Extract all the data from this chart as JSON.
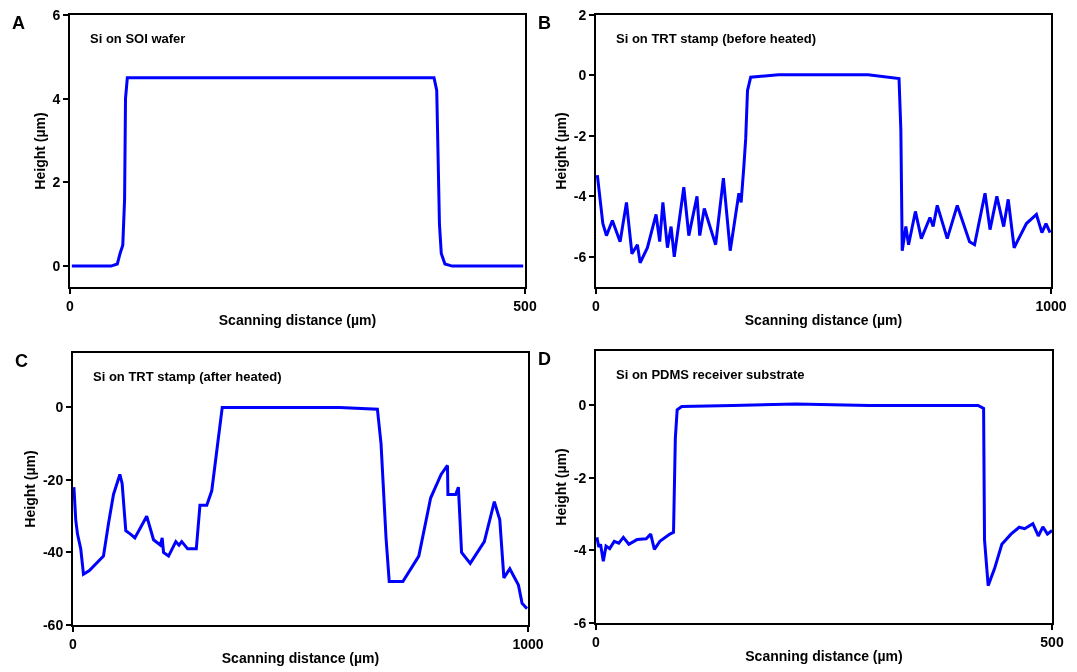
{
  "chart_data": [
    {
      "type": "line",
      "title": "A",
      "annotations": [
        "Si on SOI wafer"
      ],
      "xlabel": "Scanning distance (µm)",
      "ylabel": "Height (µm)",
      "xlim": [
        0,
        500
      ],
      "xticks": [
        0,
        500
      ],
      "ylim": [
        -0.5,
        6
      ],
      "yticks": [
        0,
        2,
        4,
        6
      ],
      "series": [
        {
          "color": "#0000ff",
          "x": [
            2,
            45,
            52,
            55,
            58,
            60,
            61,
            63,
            400,
            403,
            406,
            408,
            412,
            420,
            498
          ],
          "values": [
            0,
            0,
            0.05,
            0.3,
            0.5,
            1.6,
            4.0,
            4.5,
            4.5,
            4.2,
            1.0,
            0.3,
            0.05,
            0,
            0
          ]
        }
      ]
    },
    {
      "type": "line",
      "title": "B",
      "annotations": [
        "Si on TRT stamp (before heated)"
      ],
      "xlabel": "Scanning distance (µm)",
      "ylabel": "Height (µm)",
      "xlim": [
        0,
        1000
      ],
      "xticks": [
        0,
        1000
      ],
      "ylim": [
        -7,
        2
      ],
      "yticks": [
        -6,
        -4,
        -2,
        0,
        2
      ],
      "series": [
        {
          "color": "#0000ff",
          "x": [
            3,
            15,
            23,
            36,
            53,
            67,
            79,
            91,
            97,
            113,
            132,
            140,
            147,
            157,
            165,
            172,
            193,
            204,
            222,
            228,
            238,
            263,
            280,
            295,
            314,
            319,
            325,
            329,
            333,
            340,
            401,
            598,
            666,
            670,
            673,
            681,
            687,
            702,
            715,
            734,
            741,
            750,
            772,
            794,
            821,
            832,
            855,
            866,
            881,
            896,
            906,
            919,
            946,
            968,
            980,
            989,
            998
          ],
          "values": [
            -3.3,
            -4.9,
            -5.3,
            -4.8,
            -5.5,
            -4.2,
            -5.9,
            -5.6,
            -6.2,
            -5.7,
            -4.6,
            -5.5,
            -4.2,
            -5.7,
            -5.0,
            -6.0,
            -3.7,
            -5.3,
            -4.0,
            -5.3,
            -4.4,
            -5.6,
            -3.4,
            -5.8,
            -3.9,
            -4.2,
            -3.0,
            -2.1,
            -0.5,
            -0.06,
            0.02,
            0.02,
            -0.1,
            -1.8,
            -5.8,
            -5.0,
            -5.6,
            -4.5,
            -5.4,
            -4.7,
            -5.0,
            -4.3,
            -5.4,
            -4.3,
            -5.5,
            -5.6,
            -3.9,
            -5.1,
            -4.0,
            -5.0,
            -4.1,
            -5.7,
            -4.9,
            -4.6,
            -5.2,
            -4.9,
            -5.2
          ]
        }
      ]
    },
    {
      "type": "line",
      "title": "C",
      "annotations": [
        "Si on TRT stamp (after heated)"
      ],
      "xlabel": "Scanning distance (µm)",
      "ylabel": "Height (µm)",
      "xlim": [
        0,
        1000
      ],
      "xticks": [
        0,
        1000
      ],
      "ylim": [
        -60,
        15
      ],
      "yticks": [
        -60,
        -40,
        -20,
        0
      ],
      "series": [
        {
          "color": "#0000ff",
          "x": [
            2,
            6,
            10,
            17,
            23,
            36,
            67,
            78,
            89,
            103,
            108,
            116,
            127,
            136,
            162,
            177,
            192,
            196,
            199,
            210,
            226,
            233,
            239,
            252,
            271,
            279,
            294,
            305,
            317,
            328,
            586,
            669,
            677,
            688,
            695,
            725,
            760,
            786,
            809,
            823,
            824,
            841,
            847,
            854,
            873,
            904,
            926,
            938,
            947,
            960,
            979,
            987,
            998
          ],
          "values": [
            -22,
            -31,
            -35,
            -39,
            -46,
            -45,
            -41,
            -32,
            -24,
            -18.5,
            -21,
            -34,
            -35,
            -36,
            -30,
            -36.5,
            -38,
            -36,
            -40,
            -41,
            -37,
            -38,
            -37,
            -39,
            -39,
            -27,
            -27,
            -23,
            -11,
            0,
            0,
            -0.5,
            -10,
            -36,
            -48,
            -48,
            -41,
            -25,
            -18.5,
            -16,
            -24,
            -24,
            -22,
            -40,
            -43,
            -37,
            -26,
            -31,
            -47,
            -44.5,
            -49,
            -54,
            -55.5
          ]
        }
      ]
    },
    {
      "type": "line",
      "title": "D",
      "annotations": [
        "Si on PDMS receiver substrate"
      ],
      "xlabel": "Scanning distance (µm)",
      "ylabel": "Height (µm)",
      "xlim": [
        0,
        500
      ],
      "xticks": [
        0,
        500
      ],
      "ylim": [
        -6,
        1.5
      ],
      "yticks": [
        -6,
        -4,
        -2,
        0
      ],
      "series": [
        {
          "color": "#0000ff",
          "x": [
            1,
            3,
            5,
            8,
            11,
            15,
            20,
            25,
            30,
            36,
            45,
            55,
            60,
            64,
            70,
            81,
            85,
            87,
            89,
            94,
            150,
            219,
            300,
            419,
            425,
            426,
            430,
            437,
            445,
            455,
            464,
            470,
            479,
            485,
            490,
            495,
            500
          ],
          "values": [
            -3.64,
            -3.9,
            -3.83,
            -4.3,
            -3.88,
            -3.95,
            -3.75,
            -3.8,
            -3.64,
            -3.83,
            -3.7,
            -3.68,
            -3.55,
            -3.97,
            -3.75,
            -3.55,
            -3.5,
            -0.9,
            -0.12,
            -0.03,
            0,
            0.04,
            0,
            0,
            -0.08,
            -3.7,
            -4.97,
            -4.5,
            -3.83,
            -3.55,
            -3.36,
            -3.4,
            -3.26,
            -3.6,
            -3.35,
            -3.55,
            -3.45
          ]
        }
      ]
    }
  ]
}
